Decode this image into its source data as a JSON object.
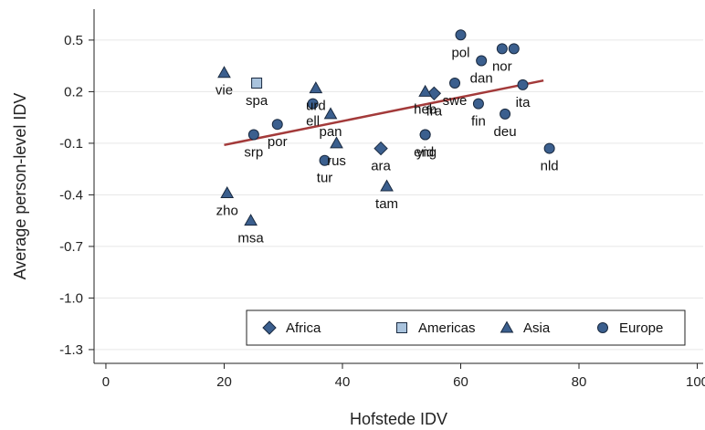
{
  "chart_data": {
    "type": "scatter",
    "xlabel": "Hofstede IDV",
    "ylabel": "Average person-level IDV",
    "xlim": [
      -2,
      101
    ],
    "ylim": [
      -1.38,
      0.68
    ],
    "xticks": [
      0,
      20,
      40,
      60,
      80,
      100
    ],
    "yticks": [
      0.5,
      0.2,
      -0.1,
      -0.4,
      -0.7,
      -1.0,
      -1.3
    ],
    "ytick_labels": [
      "0.5",
      "0.2",
      "-0.1",
      "-0.4",
      "-0.7",
      "-1.0",
      "-1.3"
    ],
    "grid": "horizontal",
    "legend_position": "bottom-right",
    "colors": {
      "marker_fill": "#3b5f8e",
      "marker_fill_light": "#a9c3dd",
      "marker_stroke": "#1a2a40",
      "fit_line": "#a33a3a",
      "grid": "#e6e6e6"
    },
    "series": [
      {
        "name": "Africa",
        "marker": "diamond",
        "points": [
          {
            "label": "ara",
            "x": 46.5,
            "y": -0.13
          },
          {
            "label": "fra",
            "x": 55.5,
            "y": 0.19
          }
        ]
      },
      {
        "name": "Americas",
        "marker": "square",
        "points": [
          {
            "label": "spa",
            "x": 25.5,
            "y": 0.25
          }
        ]
      },
      {
        "name": "Asia",
        "marker": "triangle",
        "points": [
          {
            "label": "vie",
            "x": 20,
            "y": 0.31
          },
          {
            "label": "urd",
            "x": 35.5,
            "y": 0.22
          },
          {
            "label": "pan",
            "x": 38,
            "y": 0.07
          },
          {
            "label": "rus",
            "x": 39,
            "y": -0.1
          },
          {
            "label": "heb",
            "x": 54,
            "y": 0.2
          },
          {
            "label": "tam",
            "x": 47.5,
            "y": -0.35
          },
          {
            "label": "zho",
            "x": 20.5,
            "y": -0.39
          },
          {
            "label": "msa",
            "x": 24.5,
            "y": -0.55
          }
        ]
      },
      {
        "name": "Europe",
        "marker": "circle",
        "points": [
          {
            "label": "pol",
            "x": 60,
            "y": 0.53
          },
          {
            "label": "dan",
            "x": 63.5,
            "y": 0.38
          },
          {
            "label": "nor",
            "x": 67,
            "y": 0.45
          },
          {
            "label": "",
            "x": 69,
            "y": 0.45
          },
          {
            "label": "swe",
            "x": 59,
            "y": 0.25
          },
          {
            "label": "eng",
            "x": 54,
            "y": -0.05
          },
          {
            "label": "ita",
            "x": 70.5,
            "y": 0.24
          },
          {
            "label": "fin",
            "x": 63,
            "y": 0.13
          },
          {
            "label": "deu",
            "x": 67.5,
            "y": 0.07
          },
          {
            "label": "nld",
            "x": 75,
            "y": -0.13
          },
          {
            "label": "ell",
            "x": 35,
            "y": 0.13
          },
          {
            "label": "por",
            "x": 29,
            "y": 0.01
          },
          {
            "label": "srp",
            "x": 25,
            "y": -0.05
          },
          {
            "label": "tur",
            "x": 37,
            "y": -0.2
          },
          {
            "label": "yid",
            "x": 54,
            "y": -0.05
          }
        ]
      }
    ],
    "fit_line": {
      "x": [
        20,
        74
      ],
      "y": [
        -0.11,
        0.265
      ]
    }
  }
}
